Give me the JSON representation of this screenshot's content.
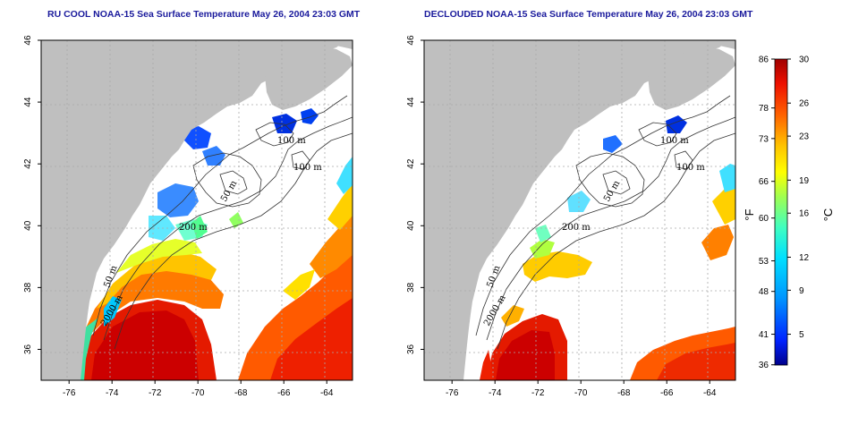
{
  "panels": [
    {
      "id": "left",
      "title": "RU COOL NOAA-15 Sea Surface Temperature May 26, 2004 23:03 GMT"
    },
    {
      "id": "right",
      "title": "DECLOUDED NOAA-15 Sea Surface Temperature May 26, 2004 23:03 GMT"
    }
  ],
  "map_axes": {
    "lon_range": [
      -77.3,
      -62.8
    ],
    "lat_range": [
      35.0,
      46.0
    ],
    "lon_ticks": [
      -76,
      -74,
      -72,
      -70,
      -68,
      -66,
      -64
    ],
    "lat_ticks": [
      36,
      38,
      40,
      42,
      44,
      46
    ],
    "lon_tick_labels": [
      "-76",
      "-74",
      "-72",
      "-70",
      "-68",
      "-66",
      "-64"
    ],
    "lat_tick_labels": [
      "36",
      "38",
      "40",
      "42",
      "44",
      "46"
    ],
    "grid": "dotted"
  },
  "contour_labels": [
    "100 m",
    "100 m",
    "50 m",
    "200 m",
    "50 m",
    "2000 m"
  ],
  "colorbar": {
    "fahrenheit_labels": [
      "86",
      "78",
      "73",
      "66",
      "60",
      "53",
      "48",
      "41",
      "36"
    ],
    "celsius_labels": [
      "30",
      "26",
      "23",
      "19",
      "16",
      "12",
      "9",
      "5"
    ],
    "f_unit": "°F",
    "c_unit": "°C",
    "range_c": [
      2.2,
      30
    ],
    "colors": [
      "#00008c",
      "#0022ff",
      "#0096ff",
      "#00e0ff",
      "#40ffc0",
      "#a0ff50",
      "#ffff00",
      "#ffc000",
      "#ff6000",
      "#ee1000",
      "#a00000"
    ]
  },
  "colors": {
    "land": "#bfbfbf",
    "no_data": "#ffffff",
    "title": "#1a1a9c"
  }
}
